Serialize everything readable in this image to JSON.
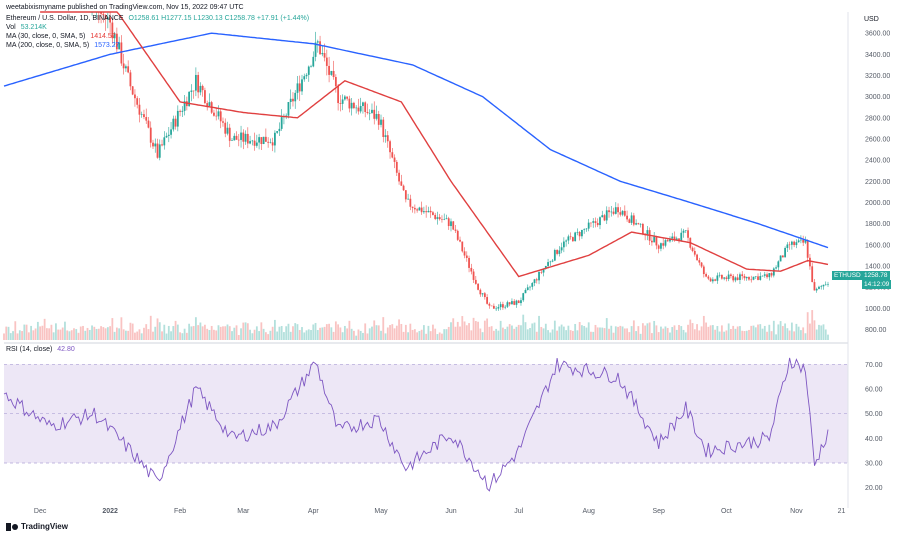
{
  "header": {
    "published": "weetabixismyname published on TradingView.com, Nov 15, 2022 09:47 UTC",
    "symbol_title": "Ethereum / U.S. Dollar, 1D, BINANCE",
    "ohlc": "O1258.61 H1277.15 L1230.13 C1258.78 +17.91 (+1.44%)",
    "vol_label": "Vol",
    "vol_value": "53.214K",
    "ma30_label": "MA (30, close, 0, SMA, 5)",
    "ma30_value": "1414.57",
    "ma200_label": "MA (200, close, 0, SMA, 5)",
    "ma200_value": "1573.27",
    "rsi_label": "RSI (14, close)",
    "rsi_value": "42.80"
  },
  "price_axis": {
    "currency": "USD",
    "ticks": [
      "3600.00",
      "3400.00",
      "3200.00",
      "3000.00",
      "2800.00",
      "2600.00",
      "2400.00",
      "2200.00",
      "2000.00",
      "1800.00",
      "1600.00",
      "1400.00",
      "1200.00",
      "1000.00",
      "800.00"
    ]
  },
  "rsi_axis": {
    "ticks": [
      "70.00",
      "60.00",
      "50.00",
      "40.00",
      "30.00",
      "20.00"
    ]
  },
  "time_axis": {
    "ticks": [
      "Dec",
      "2022",
      "Feb",
      "Mar",
      "Apr",
      "May",
      "Jun",
      "Jul",
      "Aug",
      "Sep",
      "Oct",
      "Nov",
      "21"
    ]
  },
  "badges": {
    "symbol": "ETHUSD",
    "price": "1258.78",
    "countdown": "14:12:09"
  },
  "footer": {
    "logo_text": "TradingView"
  },
  "colors": {
    "up": "#26a69a",
    "down": "#ef5350",
    "ma30": "#e04040",
    "ma200": "#2962ff",
    "rsi": "#7e57c2",
    "rsi_band": "#ede7f6"
  },
  "chart_data": {
    "type": "candlestick",
    "symbol": "Ethereum / U.S. Dollar",
    "interval": "1D",
    "x_range": [
      "2021-11-15",
      "2022-11-15"
    ],
    "price_anchors": [
      {
        "date": "2021-11-15",
        "close": 4650
      },
      {
        "date": "2021-12-01",
        "close": 4600
      },
      {
        "date": "2021-12-04",
        "close": 4100
      },
      {
        "date": "2021-12-20",
        "close": 3950
      },
      {
        "date": "2022-01-01",
        "close": 3700
      },
      {
        "date": "2022-01-10",
        "close": 3100
      },
      {
        "date": "2022-01-22",
        "close": 2450
      },
      {
        "date": "2022-02-08",
        "close": 3150
      },
      {
        "date": "2022-02-24",
        "close": 2600
      },
      {
        "date": "2022-03-15",
        "close": 2600
      },
      {
        "date": "2022-04-03",
        "close": 3500
      },
      {
        "date": "2022-04-12",
        "close": 3000
      },
      {
        "date": "2022-04-30",
        "close": 2800
      },
      {
        "date": "2022-05-12",
        "close": 2000
      },
      {
        "date": "2022-06-01",
        "close": 1800
      },
      {
        "date": "2022-06-13",
        "close": 1200
      },
      {
        "date": "2022-06-18",
        "close": 1000
      },
      {
        "date": "2022-07-01",
        "close": 1060
      },
      {
        "date": "2022-07-20",
        "close": 1600
      },
      {
        "date": "2022-08-14",
        "close": 1950
      },
      {
        "date": "2022-09-01",
        "close": 1600
      },
      {
        "date": "2022-09-13",
        "close": 1700
      },
      {
        "date": "2022-09-22",
        "close": 1280
      },
      {
        "date": "2022-10-20",
        "close": 1300
      },
      {
        "date": "2022-10-29",
        "close": 1600
      },
      {
        "date": "2022-11-05",
        "close": 1620
      },
      {
        "date": "2022-11-09",
        "close": 1150
      },
      {
        "date": "2022-11-15",
        "close": 1258.78
      }
    ],
    "ma30_anchors": [
      {
        "date": "2021-12-01",
        "value": 4300
      },
      {
        "date": "2022-01-01",
        "value": 3900
      },
      {
        "date": "2022-02-01",
        "value": 2950
      },
      {
        "date": "2022-03-01",
        "value": 2850
      },
      {
        "date": "2022-03-25",
        "value": 2800
      },
      {
        "date": "2022-04-15",
        "value": 3150
      },
      {
        "date": "2022-05-10",
        "value": 2950
      },
      {
        "date": "2022-06-01",
        "value": 2200
      },
      {
        "date": "2022-07-01",
        "value": 1300
      },
      {
        "date": "2022-08-01",
        "value": 1500
      },
      {
        "date": "2022-08-20",
        "value": 1720
      },
      {
        "date": "2022-09-15",
        "value": 1620
      },
      {
        "date": "2022-10-10",
        "value": 1370
      },
      {
        "date": "2022-10-25",
        "value": 1350
      },
      {
        "date": "2022-11-06",
        "value": 1450
      },
      {
        "date": "2022-11-15",
        "value": 1414.57
      }
    ],
    "ma200_anchors": [
      {
        "date": "2021-11-15",
        "value": 3100
      },
      {
        "date": "2022-01-01",
        "value": 3400
      },
      {
        "date": "2022-02-15",
        "value": 3600
      },
      {
        "date": "2022-04-01",
        "value": 3500
      },
      {
        "date": "2022-05-15",
        "value": 3300
      },
      {
        "date": "2022-06-15",
        "value": 3000
      },
      {
        "date": "2022-07-15",
        "value": 2500
      },
      {
        "date": "2022-08-15",
        "value": 2200
      },
      {
        "date": "2022-09-15",
        "value": 2000
      },
      {
        "date": "2022-10-15",
        "value": 1800
      },
      {
        "date": "2022-11-15",
        "value": 1573.27
      }
    ],
    "rsi_anchors": [
      {
        "date": "2021-11-15",
        "value": 58
      },
      {
        "date": "2021-12-05",
        "value": 45
      },
      {
        "date": "2021-12-25",
        "value": 50
      },
      {
        "date": "2022-01-10",
        "value": 35
      },
      {
        "date": "2022-01-22",
        "value": 22
      },
      {
        "date": "2022-02-08",
        "value": 60
      },
      {
        "date": "2022-02-24",
        "value": 40
      },
      {
        "date": "2022-03-15",
        "value": 45
      },
      {
        "date": "2022-04-02",
        "value": 71
      },
      {
        "date": "2022-04-12",
        "value": 43
      },
      {
        "date": "2022-04-30",
        "value": 48
      },
      {
        "date": "2022-05-12",
        "value": 28
      },
      {
        "date": "2022-06-01",
        "value": 42
      },
      {
        "date": "2022-06-18",
        "value": 21
      },
      {
        "date": "2022-07-01",
        "value": 35
      },
      {
        "date": "2022-07-18",
        "value": 70
      },
      {
        "date": "2022-08-14",
        "value": 65
      },
      {
        "date": "2022-09-01",
        "value": 38
      },
      {
        "date": "2022-09-13",
        "value": 52
      },
      {
        "date": "2022-09-22",
        "value": 35
      },
      {
        "date": "2022-10-20",
        "value": 40
      },
      {
        "date": "2022-10-29",
        "value": 72
      },
      {
        "date": "2022-11-05",
        "value": 68
      },
      {
        "date": "2022-11-09",
        "value": 29
      },
      {
        "date": "2022-11-15",
        "value": 42.8
      }
    ],
    "price_ylim": [
      700,
      3800
    ],
    "rsi_ylim": [
      15,
      75
    ],
    "rsi_bands": [
      30,
      70
    ],
    "legend": "top-left"
  }
}
